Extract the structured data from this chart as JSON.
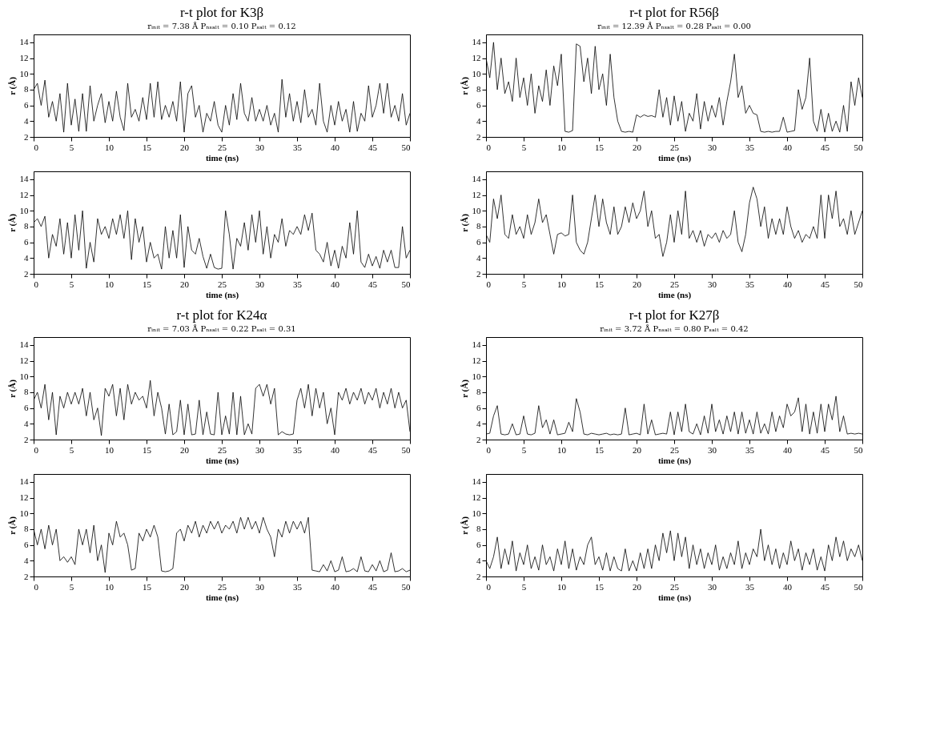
{
  "chart_data": [
    {
      "type": "line",
      "title": "r-t plot for K3β",
      "subtitle": "rᵢₙᵢₜ = 7.38 Å   Pₙₛₐₗₜ = 0.10   Pₛₐₗₜ = 0.12",
      "xlabel": "time (ns)",
      "ylabel": "r (Å)",
      "xlim": [
        0,
        50
      ],
      "xticks": [
        0,
        5,
        10,
        15,
        20,
        25,
        30,
        35,
        40,
        45,
        50
      ],
      "ylim": [
        2,
        15
      ],
      "yticks": [
        2,
        4,
        6,
        8,
        10,
        12,
        14
      ],
      "x": [
        0,
        0.5,
        1,
        1.5,
        2,
        2.5,
        3,
        3.5,
        4,
        4.5,
        5,
        5.5,
        6,
        6.5,
        7,
        7.5,
        8,
        8.5,
        9,
        9.5,
        10,
        10.5,
        11,
        11.5,
        12,
        12.5,
        13,
        13.5,
        14,
        14.5,
        15,
        15.5,
        16,
        16.5,
        17,
        17.5,
        18,
        18.5,
        19,
        19.5,
        20,
        20.5,
        21,
        21.5,
        22,
        22.5,
        23,
        23.5,
        24,
        24.5,
        25,
        25.5,
        26,
        26.5,
        27,
        27.5,
        28,
        28.5,
        29,
        29.5,
        30,
        30.5,
        31,
        31.5,
        32,
        32.5,
        33,
        33.5,
        34,
        34.5,
        35,
        35.5,
        36,
        36.5,
        37,
        37.5,
        38,
        38.5,
        39,
        39.5,
        40,
        40.5,
        41,
        41.5,
        42,
        42.5,
        43,
        43.5,
        44,
        44.5,
        45,
        45.5,
        46,
        46.5,
        47,
        47.5,
        48,
        48.5,
        49,
        49.5,
        50
      ],
      "series": [
        {
          "color": "#000000",
          "values": [
            8,
            8.8,
            6,
            9.2,
            4.5,
            6.5,
            4,
            7.5,
            2.6,
            8.8,
            3.5,
            6.8,
            2.7,
            7.5,
            2.7,
            8.5,
            4,
            6,
            7.5,
            3.8,
            6.5,
            4,
            7.8,
            4.5,
            2.8,
            8.8,
            4.5,
            5.5,
            4,
            7,
            4.2,
            8.8,
            4.5,
            9,
            4.2,
            6,
            4.5,
            6.5,
            4,
            9,
            2.6,
            7.5,
            8.5,
            4.5,
            6,
            2.6,
            5,
            4,
            6.5,
            3.5,
            2.6,
            6,
            3.5,
            7.5,
            4.2,
            8.8,
            5,
            4,
            7,
            4,
            5.5,
            4,
            6,
            3.5,
            5,
            2.6,
            9.3,
            4.5,
            7.5,
            4,
            6.5,
            3.8,
            8,
            4.5,
            5.5,
            3.5,
            8.8,
            4,
            2.6,
            6,
            3.5,
            6.5,
            4,
            5.5,
            2.6,
            6.5,
            2.7,
            5,
            4,
            8.5,
            4.5,
            6,
            8.8,
            5,
            8.8,
            4.5,
            6,
            4,
            7.5,
            3.5,
            5
          ]
        }
      ]
    },
    {
      "type": "line",
      "title": "r-t plot for R56β",
      "subtitle": "rᵢₙᵢₜ = 12.39 Å   Pₙₛₐₗₜ = 0.28   Pₛₐₗₜ = 0.00",
      "xlabel": "time (ns)",
      "ylabel": "r (Å)",
      "xlim": [
        0,
        50
      ],
      "xticks": [
        0,
        5,
        10,
        15,
        20,
        25,
        30,
        35,
        40,
        45,
        50
      ],
      "ylim": [
        2,
        15
      ],
      "yticks": [
        2,
        4,
        6,
        8,
        10,
        12,
        14
      ],
      "x": [
        0,
        0.5,
        1,
        1.5,
        2,
        2.5,
        3,
        3.5,
        4,
        4.5,
        5,
        5.5,
        6,
        6.5,
        7,
        7.5,
        8,
        8.5,
        9,
        9.5,
        10,
        10.5,
        11,
        11.5,
        12,
        12.5,
        13,
        13.5,
        14,
        14.5,
        15,
        15.5,
        16,
        16.5,
        17,
        17.5,
        18,
        18.5,
        19,
        19.5,
        20,
        20.5,
        21,
        21.5,
        22,
        22.5,
        23,
        23.5,
        24,
        24.5,
        25,
        25.5,
        26,
        26.5,
        27,
        27.5,
        28,
        28.5,
        29,
        29.5,
        30,
        30.5,
        31,
        31.5,
        32,
        32.5,
        33,
        33.5,
        34,
        34.5,
        35,
        35.5,
        36,
        36.5,
        37,
        37.5,
        38,
        38.5,
        39,
        39.5,
        40,
        40.5,
        41,
        41.5,
        42,
        42.5,
        43,
        43.5,
        44,
        44.5,
        45,
        45.5,
        46,
        46.5,
        47,
        47.5,
        48,
        48.5,
        49,
        49.5,
        50
      ],
      "series": [
        {
          "color": "#000000",
          "values": [
            12,
            9.5,
            14,
            8,
            12,
            7.5,
            9,
            6.5,
            12,
            7,
            9.5,
            6,
            10,
            5,
            8.5,
            6.5,
            10.5,
            6,
            11,
            8.5,
            12.5,
            2.7,
            2.6,
            2.8,
            13.8,
            13.5,
            9,
            12,
            7.5,
            13.5,
            8,
            10,
            6,
            12.5,
            7,
            4,
            2.7,
            2.6,
            2.7,
            2.6,
            4.8,
            4.5,
            4.8,
            4.6,
            4.7,
            4.5,
            8,
            4.5,
            7,
            3.5,
            7.2,
            4,
            6.5,
            2.7,
            5,
            4,
            7.5,
            3,
            6.5,
            4,
            6,
            4.5,
            7,
            3.5,
            6.5,
            9,
            12.5,
            7,
            8.5,
            5,
            6,
            5,
            4.8,
            2.7,
            2.6,
            2.7,
            2.6,
            2.7,
            2.7,
            4.5,
            2.6,
            2.7,
            2.8,
            8,
            5.5,
            7,
            12,
            4,
            2.7,
            5.5,
            2.6,
            5,
            2.7,
            4,
            2.6,
            6,
            2.7,
            9,
            6,
            9.5,
            7
          ]
        }
      ]
    },
    {
      "type": "line",
      "xlabel": "time (ns)",
      "ylabel": "r (Å)",
      "xlim": [
        0,
        50
      ],
      "xticks": [
        0,
        5,
        10,
        15,
        20,
        25,
        30,
        35,
        40,
        45,
        50
      ],
      "ylim": [
        2,
        15
      ],
      "yticks": [
        2,
        4,
        6,
        8,
        10,
        12,
        14
      ],
      "x": [
        0,
        0.5,
        1,
        1.5,
        2,
        2.5,
        3,
        3.5,
        4,
        4.5,
        5,
        5.5,
        6,
        6.5,
        7,
        7.5,
        8,
        8.5,
        9,
        9.5,
        10,
        10.5,
        11,
        11.5,
        12,
        12.5,
        13,
        13.5,
        14,
        14.5,
        15,
        15.5,
        16,
        16.5,
        17,
        17.5,
        18,
        18.5,
        19,
        19.5,
        20,
        20.5,
        21,
        21.5,
        22,
        22.5,
        23,
        23.5,
        24,
        24.5,
        25,
        25.5,
        26,
        26.5,
        27,
        27.5,
        28,
        28.5,
        29,
        29.5,
        30,
        30.5,
        31,
        31.5,
        32,
        32.5,
        33,
        33.5,
        34,
        34.5,
        35,
        35.5,
        36,
        36.5,
        37,
        37.5,
        38,
        38.5,
        39,
        39.5,
        40,
        40.5,
        41,
        41.5,
        42,
        42.5,
        43,
        43.5,
        44,
        44.5,
        45,
        45.5,
        46,
        46.5,
        47,
        47.5,
        48,
        48.5,
        49,
        49.5,
        50
      ],
      "series": [
        {
          "color": "#000000",
          "values": [
            8.5,
            9,
            8,
            9.3,
            4,
            7,
            5.5,
            9,
            4.5,
            8.5,
            4,
            9.5,
            5,
            10,
            2.7,
            6,
            3.5,
            9,
            7,
            8,
            6.5,
            9,
            7,
            9.5,
            6.5,
            10,
            3.8,
            9,
            6,
            8,
            3.5,
            6,
            4,
            4.5,
            2.6,
            8,
            4,
            7.5,
            4,
            9.5,
            2.8,
            8,
            5,
            4.5,
            6.5,
            4.2,
            2.7,
            4.5,
            2.8,
            2.6,
            2.7,
            10,
            7,
            2.6,
            6.5,
            5.5,
            8.5,
            5,
            9.5,
            6,
            10,
            4.5,
            8,
            4,
            7,
            6,
            9,
            5.5,
            7.5,
            7,
            8,
            7,
            9.5,
            7.5,
            9.7,
            5,
            4.5,
            3.5,
            6,
            3,
            5,
            2.7,
            5.5,
            4,
            8.5,
            4.5,
            10,
            3.5,
            2.8,
            4.5,
            3,
            4.2,
            2.7,
            5,
            3.5,
            5,
            2.8,
            2.8,
            8,
            4,
            5
          ]
        }
      ]
    },
    {
      "type": "line",
      "xlabel": "time (ns)",
      "ylabel": "r (Å)",
      "xlim": [
        0,
        50
      ],
      "xticks": [
        0,
        5,
        10,
        15,
        20,
        25,
        30,
        35,
        40,
        45,
        50
      ],
      "ylim": [
        2,
        15
      ],
      "yticks": [
        2,
        4,
        6,
        8,
        10,
        12,
        14
      ],
      "x": [
        0,
        0.5,
        1,
        1.5,
        2,
        2.5,
        3,
        3.5,
        4,
        4.5,
        5,
        5.5,
        6,
        6.5,
        7,
        7.5,
        8,
        8.5,
        9,
        9.5,
        10,
        10.5,
        11,
        11.5,
        12,
        12.5,
        13,
        13.5,
        14,
        14.5,
        15,
        15.5,
        16,
        16.5,
        17,
        17.5,
        18,
        18.5,
        19,
        19.5,
        20,
        20.5,
        21,
        21.5,
        22,
        22.5,
        23,
        23.5,
        24,
        24.5,
        25,
        25.5,
        26,
        26.5,
        27,
        27.5,
        28,
        28.5,
        29,
        29.5,
        30,
        30.5,
        31,
        31.5,
        32,
        32.5,
        33,
        33.5,
        34,
        34.5,
        35,
        35.5,
        36,
        36.5,
        37,
        37.5,
        38,
        38.5,
        39,
        39.5,
        40,
        40.5,
        41,
        41.5,
        42,
        42.5,
        43,
        43.5,
        44,
        44.5,
        45,
        45.5,
        46,
        46.5,
        47,
        47.5,
        48,
        48.5,
        49,
        49.5,
        50
      ],
      "series": [
        {
          "color": "#000000",
          "values": [
            7,
            6,
            11.5,
            9,
            12,
            7,
            6.5,
            9.5,
            7,
            8,
            6.5,
            9.5,
            7,
            8.5,
            11.5,
            8.5,
            9.5,
            7,
            4.5,
            7,
            7.2,
            6.8,
            7,
            12,
            6,
            5,
            4.5,
            6,
            9,
            12,
            8,
            11.5,
            8.5,
            7,
            10.5,
            7,
            8,
            10.5,
            8.5,
            11,
            9,
            10,
            12.5,
            8,
            10,
            6.5,
            7,
            4.2,
            6,
            9.5,
            6,
            10,
            7,
            12.5,
            6.5,
            7.5,
            6,
            7.5,
            5.5,
            7,
            6.5,
            7.2,
            6,
            7.5,
            6.5,
            7,
            10,
            6,
            4.8,
            7,
            11,
            13,
            11.5,
            8,
            10.5,
            6.5,
            9,
            7,
            9,
            7,
            10.5,
            8,
            6.5,
            7.5,
            6,
            7,
            6.5,
            8,
            6.5,
            12,
            6.5,
            12,
            9,
            12.5,
            8,
            9,
            7,
            10,
            7,
            8.5,
            10
          ]
        }
      ]
    },
    {
      "type": "line",
      "title": "r-t plot for K24α",
      "subtitle": "rᵢₙᵢₜ = 7.03 Å   Pₙₛₐₗₜ = 0.22   Pₛₐₗₜ = 0.31",
      "xlabel": "time (ns)",
      "ylabel": "r (Å)",
      "xlim": [
        0,
        50
      ],
      "xticks": [
        0,
        5,
        10,
        15,
        20,
        25,
        30,
        35,
        40,
        45,
        50
      ],
      "ylim": [
        2,
        15
      ],
      "yticks": [
        2,
        4,
        6,
        8,
        10,
        12,
        14
      ],
      "x": [
        0,
        0.5,
        1,
        1.5,
        2,
        2.5,
        3,
        3.5,
        4,
        4.5,
        5,
        5.5,
        6,
        6.5,
        7,
        7.5,
        8,
        8.5,
        9,
        9.5,
        10,
        10.5,
        11,
        11.5,
        12,
        12.5,
        13,
        13.5,
        14,
        14.5,
        15,
        15.5,
        16,
        16.5,
        17,
        17.5,
        18,
        18.5,
        19,
        19.5,
        20,
        20.5,
        21,
        21.5,
        22,
        22.5,
        23,
        23.5,
        24,
        24.5,
        25,
        25.5,
        26,
        26.5,
        27,
        27.5,
        28,
        28.5,
        29,
        29.5,
        30,
        30.5,
        31,
        31.5,
        32,
        32.5,
        33,
        33.5,
        34,
        34.5,
        35,
        35.5,
        36,
        36.5,
        37,
        37.5,
        38,
        38.5,
        39,
        39.5,
        40,
        40.5,
        41,
        41.5,
        42,
        42.5,
        43,
        43.5,
        44,
        44.5,
        45,
        45.5,
        46,
        46.5,
        47,
        47.5,
        48,
        48.5,
        49,
        49.5,
        50
      ],
      "series": [
        {
          "color": "#000000",
          "values": [
            7,
            8,
            6,
            9,
            4.5,
            8,
            2.6,
            7.5,
            6,
            8,
            6.5,
            8,
            6.5,
            8.5,
            5,
            8,
            4.5,
            6,
            2.5,
            8.5,
            7.5,
            9,
            5,
            8.5,
            4.5,
            9,
            6.5,
            8,
            7,
            7.5,
            6,
            9.5,
            5,
            8,
            6,
            2.7,
            6.5,
            2.6,
            3,
            7,
            2.6,
            6.5,
            2.6,
            2.7,
            7,
            2.6,
            5.5,
            2.7,
            2.6,
            8,
            2.6,
            5,
            2.7,
            8,
            2.6,
            7.5,
            2.6,
            4,
            2.7,
            8.5,
            9,
            7.5,
            9,
            6.5,
            8.5,
            2.6,
            3,
            2.7,
            2.6,
            2.7,
            7,
            8.5,
            6,
            9,
            5,
            8.5,
            6,
            8,
            4,
            6,
            2.6,
            8,
            7,
            8.5,
            6.5,
            8,
            7,
            8.5,
            6.5,
            8,
            7,
            8.5,
            6,
            8,
            6.5,
            8.5,
            6,
            8,
            6,
            7,
            3
          ]
        }
      ]
    },
    {
      "type": "line",
      "title": "r-t plot for K27β",
      "subtitle": "rᵢₙᵢₜ = 3.72 Å   Pₙₛₐₗₜ = 0.80   Pₛₐₗₜ = 0.42",
      "xlabel": "time (ns)",
      "ylabel": "r (Å)",
      "xlim": [
        0,
        50
      ],
      "xticks": [
        0,
        5,
        10,
        15,
        20,
        25,
        30,
        35,
        40,
        45,
        50
      ],
      "ylim": [
        2,
        15
      ],
      "yticks": [
        2,
        4,
        6,
        8,
        10,
        12,
        14
      ],
      "x": [
        0,
        0.5,
        1,
        1.5,
        2,
        2.5,
        3,
        3.5,
        4,
        4.5,
        5,
        5.5,
        6,
        6.5,
        7,
        7.5,
        8,
        8.5,
        9,
        9.5,
        10,
        10.5,
        11,
        11.5,
        12,
        12.5,
        13,
        13.5,
        14,
        14.5,
        15,
        15.5,
        16,
        16.5,
        17,
        17.5,
        18,
        18.5,
        19,
        19.5,
        20,
        20.5,
        21,
        21.5,
        22,
        22.5,
        23,
        23.5,
        24,
        24.5,
        25,
        25.5,
        26,
        26.5,
        27,
        27.5,
        28,
        28.5,
        29,
        29.5,
        30,
        30.5,
        31,
        31.5,
        32,
        32.5,
        33,
        33.5,
        34,
        34.5,
        35,
        35.5,
        36,
        36.5,
        37,
        37.5,
        38,
        38.5,
        39,
        39.5,
        40,
        40.5,
        41,
        41.5,
        42,
        42.5,
        43,
        43.5,
        44,
        44.5,
        45,
        45.5,
        46,
        46.5,
        47,
        47.5,
        48,
        48.5,
        49,
        49.5,
        50
      ],
      "series": [
        {
          "color": "#000000",
          "values": [
            2.7,
            2.8,
            5,
            6.3,
            2.7,
            2.6,
            2.7,
            4,
            2.6,
            2.7,
            5,
            2.7,
            2.6,
            2.8,
            6.3,
            3.5,
            4.5,
            2.7,
            4.5,
            2.6,
            2.7,
            2.8,
            4.2,
            3,
            7.2,
            5.5,
            2.7,
            2.6,
            2.8,
            2.7,
            2.6,
            2.7,
            2.8,
            2.6,
            2.7,
            2.6,
            2.7,
            6,
            2.6,
            2.7,
            2.8,
            2.6,
            6.5,
            2.7,
            4.5,
            2.6,
            2.7,
            2.8,
            2.7,
            5.5,
            2.6,
            5.5,
            3,
            6.5,
            3,
            2.7,
            4,
            2.6,
            5,
            2.8,
            6.5,
            3,
            4.5,
            2.7,
            5,
            3,
            5.5,
            2.7,
            5.5,
            2.8,
            4.5,
            2.7,
            5.5,
            2.8,
            4,
            2.7,
            5.5,
            3,
            5,
            3.5,
            6.5,
            5,
            5.5,
            7.3,
            3,
            6.5,
            2.7,
            5.5,
            2.8,
            6.5,
            3,
            6.5,
            4.5,
            7.5,
            3,
            5,
            2.7,
            2.8,
            2.7,
            2.8,
            2.7
          ]
        }
      ]
    },
    {
      "type": "line",
      "xlabel": "time (ns)",
      "ylabel": "r (Å)",
      "xlim": [
        0,
        50
      ],
      "xticks": [
        0,
        5,
        10,
        15,
        20,
        25,
        30,
        35,
        40,
        45,
        50
      ],
      "ylim": [
        2,
        15
      ],
      "yticks": [
        2,
        4,
        6,
        8,
        10,
        12,
        14
      ],
      "x": [
        0,
        0.5,
        1,
        1.5,
        2,
        2.5,
        3,
        3.5,
        4,
        4.5,
        5,
        5.5,
        6,
        6.5,
        7,
        7.5,
        8,
        8.5,
        9,
        9.5,
        10,
        10.5,
        11,
        11.5,
        12,
        12.5,
        13,
        13.5,
        14,
        14.5,
        15,
        15.5,
        16,
        16.5,
        17,
        17.5,
        18,
        18.5,
        19,
        19.5,
        20,
        20.5,
        21,
        21.5,
        22,
        22.5,
        23,
        23.5,
        24,
        24.5,
        25,
        25.5,
        26,
        26.5,
        27,
        27.5,
        28,
        28.5,
        29,
        29.5,
        30,
        30.5,
        31,
        31.5,
        32,
        32.5,
        33,
        33.5,
        34,
        34.5,
        35,
        35.5,
        36,
        36.5,
        37,
        37.5,
        38,
        38.5,
        39,
        39.5,
        40,
        40.5,
        41,
        41.5,
        42,
        42.5,
        43,
        43.5,
        44,
        44.5,
        45,
        45.5,
        46,
        46.5,
        47,
        47.5,
        48,
        48.5,
        49,
        49.5,
        50
      ],
      "series": [
        {
          "color": "#000000",
          "values": [
            8,
            6,
            8,
            5.5,
            8.5,
            6,
            8,
            4,
            4.5,
            3.8,
            4.5,
            3.5,
            8,
            6,
            8,
            5,
            8.5,
            4,
            6,
            2.5,
            7.5,
            6,
            9,
            7,
            7.5,
            6,
            2.8,
            3,
            7.5,
            6.5,
            8,
            7,
            8.5,
            7,
            2.7,
            2.6,
            2.7,
            3,
            7.5,
            8,
            6.5,
            8.5,
            7.5,
            9,
            7,
            8.5,
            7.5,
            9,
            8,
            9,
            7.5,
            8.5,
            8,
            9,
            7.5,
            9.5,
            8,
            9.5,
            8,
            9,
            7.5,
            9.5,
            8,
            7,
            4.5,
            8,
            7,
            9,
            7.5,
            9,
            8,
            9,
            7.5,
            9.5,
            2.8,
            2.7,
            2.6,
            3.5,
            2.7,
            4,
            2.6,
            2.8,
            4.5,
            2.6,
            2.7,
            3,
            2.6,
            4.5,
            2.7,
            2.6,
            3.5,
            2.7,
            4,
            2.6,
            2.8,
            5,
            2.6,
            2.7,
            3,
            2.6,
            2.8
          ]
        }
      ]
    },
    {
      "type": "line",
      "xlabel": "time (ns)",
      "ylabel": "r (Å)",
      "xlim": [
        0,
        50
      ],
      "xticks": [
        0,
        5,
        10,
        15,
        20,
        25,
        30,
        35,
        40,
        45,
        50
      ],
      "ylim": [
        2,
        15
      ],
      "yticks": [
        2,
        4,
        6,
        8,
        10,
        12,
        14
      ],
      "x": [
        0,
        0.5,
        1,
        1.5,
        2,
        2.5,
        3,
        3.5,
        4,
        4.5,
        5,
        5.5,
        6,
        6.5,
        7,
        7.5,
        8,
        8.5,
        9,
        9.5,
        10,
        10.5,
        11,
        11.5,
        12,
        12.5,
        13,
        13.5,
        14,
        14.5,
        15,
        15.5,
        16,
        16.5,
        17,
        17.5,
        18,
        18.5,
        19,
        19.5,
        20,
        20.5,
        21,
        21.5,
        22,
        22.5,
        23,
        23.5,
        24,
        24.5,
        25,
        25.5,
        26,
        26.5,
        27,
        27.5,
        28,
        28.5,
        29,
        29.5,
        30,
        30.5,
        31,
        31.5,
        32,
        32.5,
        33,
        33.5,
        34,
        34.5,
        35,
        35.5,
        36,
        36.5,
        37,
        37.5,
        38,
        38.5,
        39,
        39.5,
        40,
        40.5,
        41,
        41.5,
        42,
        42.5,
        43,
        43.5,
        44,
        44.5,
        45,
        45.5,
        46,
        46.5,
        47,
        47.5,
        48,
        48.5,
        49,
        49.5,
        50
      ],
      "series": [
        {
          "color": "#000000",
          "values": [
            4,
            3,
            4.5,
            7,
            3,
            5.5,
            3.5,
            6.5,
            2.7,
            5,
            3.5,
            6,
            3,
            4.5,
            2.8,
            6,
            3.5,
            4.5,
            2.7,
            5.5,
            3.5,
            6.5,
            3,
            5.5,
            2.8,
            4.5,
            3.5,
            6,
            7,
            3.5,
            4.5,
            2.8,
            5,
            2.7,
            4.5,
            3,
            2.7,
            5.5,
            2.7,
            4,
            2.7,
            5,
            3,
            5.5,
            3,
            6,
            4,
            7.5,
            5,
            7.8,
            4,
            7.5,
            4.5,
            7,
            3,
            6,
            3.5,
            5.5,
            3,
            5,
            3.5,
            6,
            2.8,
            4.5,
            3,
            5,
            3.5,
            6.5,
            3,
            5,
            3.5,
            5.5,
            4.5,
            8,
            4,
            6,
            3.5,
            5.5,
            3,
            5,
            3.5,
            6.5,
            4,
            5.5,
            2.8,
            5,
            3.5,
            5.5,
            2.8,
            4.5,
            2.7,
            6,
            4,
            7,
            4.5,
            6.5,
            4,
            5.5,
            4.5,
            6,
            4
          ]
        }
      ]
    }
  ]
}
